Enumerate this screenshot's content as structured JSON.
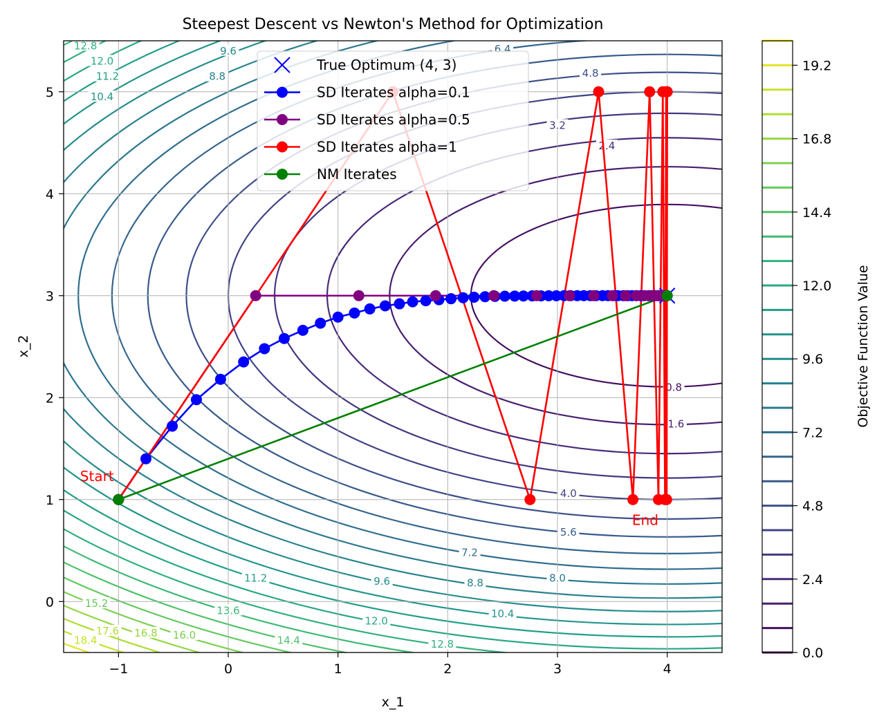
{
  "chart_data": {
    "type": "line",
    "title": "Steepest Descent vs Newton's Method for Optimization",
    "xlabel": "x_1",
    "ylabel": "x_2",
    "xlim": [
      -1.5,
      4.5
    ],
    "ylim": [
      -0.5,
      5.5
    ],
    "x_ticks": [
      -1,
      0,
      1,
      2,
      3,
      4
    ],
    "y_ticks": [
      0,
      1,
      2,
      3,
      4,
      5
    ],
    "grid": true,
    "legend_position": "top-center",
    "colorbar": {
      "label": "Objective Function Value",
      "ticks": [
        0.0,
        2.4,
        4.8,
        7.2,
        9.6,
        12.0,
        14.4,
        16.8,
        19.2
      ],
      "range": [
        0,
        20
      ],
      "level_step": 0.8,
      "colormap": "viridis"
    },
    "contour_function": {
      "center": [
        4,
        3
      ],
      "x_weight": 0.25,
      "y_weight": 1.0
    },
    "contour_labels": [
      {
        "text": "12.8",
        "x": -1.3,
        "y": 5.45
      },
      {
        "text": "12.0",
        "x": -1.15,
        "y": 5.3
      },
      {
        "text": "11.2",
        "x": -1.1,
        "y": 5.15
      },
      {
        "text": "10.4",
        "x": -1.15,
        "y": 4.95
      },
      {
        "text": "9.6",
        "x": 0.0,
        "y": 5.4
      },
      {
        "text": "8.8",
        "x": -0.1,
        "y": 5.15
      },
      {
        "text": "6.4",
        "x": 2.5,
        "y": 5.42
      },
      {
        "text": "4.8",
        "x": 3.3,
        "y": 5.18
      },
      {
        "text": "3.2",
        "x": 3.0,
        "y": 4.67
      },
      {
        "text": "2.4",
        "x": 3.45,
        "y": 4.47
      },
      {
        "text": "0.8",
        "x": 4.06,
        "y": 2.1
      },
      {
        "text": "1.6",
        "x": 4.08,
        "y": 1.74
      },
      {
        "text": "4.0",
        "x": 3.1,
        "y": 1.06
      },
      {
        "text": "5.6",
        "x": 3.1,
        "y": 0.68
      },
      {
        "text": "7.2",
        "x": 2.2,
        "y": 0.48
      },
      {
        "text": "8.0",
        "x": 3.0,
        "y": 0.23
      },
      {
        "text": "8.8",
        "x": 2.25,
        "y": 0.18
      },
      {
        "text": "9.6",
        "x": 1.4,
        "y": 0.2
      },
      {
        "text": "11.2",
        "x": 0.25,
        "y": 0.23
      },
      {
        "text": "10.4",
        "x": 2.5,
        "y": -0.12
      },
      {
        "text": "13.6",
        "x": 0.0,
        "y": -0.09
      },
      {
        "text": "12.0",
        "x": 1.35,
        "y": -0.19
      },
      {
        "text": "15.2",
        "x": -1.2,
        "y": -0.02
      },
      {
        "text": "14.4",
        "x": 0.55,
        "y": -0.38
      },
      {
        "text": "12.8",
        "x": 1.95,
        "y": -0.42
      },
      {
        "text": "16.0",
        "x": -0.4,
        "y": -0.33
      },
      {
        "text": "16.8",
        "x": -0.75,
        "y": -0.31
      },
      {
        "text": "17.6",
        "x": -1.1,
        "y": -0.29
      },
      {
        "text": "18.4",
        "x": -1.3,
        "y": -0.38
      }
    ],
    "series": [
      {
        "name": "True Optimum (4, 3)",
        "color": "#0000ff",
        "marker": "x",
        "line": false,
        "x": [
          4
        ],
        "y": [
          3
        ]
      },
      {
        "name": "SD Iterates alpha=0.1",
        "color": "#0000ff",
        "marker": "o",
        "line": true,
        "x": [
          -1,
          -0.75,
          -0.51,
          -0.29,
          -0.07,
          0.14,
          0.33,
          0.51,
          0.68,
          0.84,
          1.0,
          1.15,
          1.29,
          1.43,
          1.56,
          1.68,
          1.8,
          1.92,
          2.03,
          2.14,
          2.24,
          2.34,
          2.43,
          2.52,
          2.61,
          2.69,
          2.77,
          2.85,
          2.92,
          2.99,
          3.06,
          3.12,
          3.18,
          3.24,
          3.3,
          3.35,
          3.41,
          3.46,
          3.51,
          3.55,
          3.6,
          3.64,
          3.68,
          3.72,
          3.76,
          3.79,
          3.83,
          3.86,
          3.89,
          3.92,
          3.95,
          3.97,
          4.0
        ],
        "y": [
          1,
          1.4,
          1.72,
          1.98,
          2.18,
          2.35,
          2.48,
          2.58,
          2.66,
          2.73,
          2.79,
          2.83,
          2.87,
          2.9,
          2.92,
          2.94,
          2.95,
          2.96,
          2.97,
          2.98,
          2.985,
          2.99,
          2.993,
          2.995,
          2.996,
          2.997,
          2.998,
          2.998,
          2.999,
          2.999,
          3.0,
          3.0,
          3.0,
          3.0,
          3.0,
          3.0,
          3.0,
          3.0,
          3.0,
          3.0,
          3.0,
          3.0,
          3.0,
          3.0,
          3.0,
          3.0,
          3.0,
          3.0,
          3.0,
          3.0,
          3.0,
          3.0,
          3.0
        ]
      },
      {
        "name": "SD Iterates alpha=0.5",
        "color": "#800080",
        "marker": "o",
        "line": true,
        "x": [
          -1,
          0.25,
          1.19,
          1.89,
          2.42,
          2.81,
          3.11,
          3.33,
          3.5,
          3.62,
          3.72,
          3.79,
          3.84,
          3.88,
          3.91,
          3.93,
          3.95,
          3.96,
          3.97,
          3.98,
          4.0
        ],
        "y": [
          1,
          3,
          3,
          3,
          3,
          3,
          3,
          3,
          3,
          3,
          3,
          3,
          3,
          3,
          3,
          3,
          3,
          3,
          3,
          3,
          3
        ]
      },
      {
        "name": "SD Iterates alpha=1",
        "color": "#ff0000",
        "marker": "o",
        "line": true,
        "x": [
          -1,
          1.5,
          2.75,
          3.375,
          3.6875,
          3.84,
          3.92,
          3.96,
          3.98,
          3.99,
          3.995,
          4.0
        ],
        "y": [
          1,
          5,
          1,
          5,
          1,
          5,
          1,
          5,
          1,
          5,
          1,
          5
        ]
      },
      {
        "name": "NM Iterates",
        "color": "#008000",
        "marker": "o",
        "line": true,
        "x": [
          -1,
          4
        ],
        "y": [
          1,
          3
        ]
      }
    ],
    "annotations": [
      {
        "text": "Start",
        "x": -1.35,
        "y": 1.18,
        "color": "#ff0000"
      },
      {
        "text": "End",
        "x": 3.68,
        "y": 0.75,
        "color": "#ff0000"
      }
    ]
  }
}
